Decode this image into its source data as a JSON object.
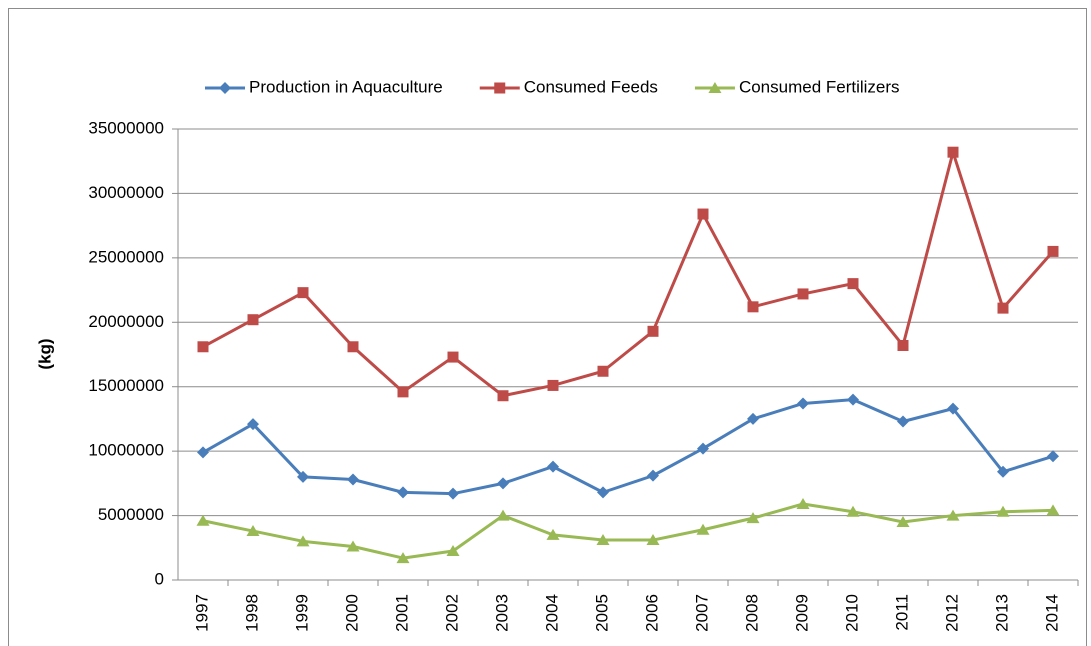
{
  "chart_data": {
    "type": "line",
    "y_label": "(kg)",
    "categories": [
      "1997",
      "1998",
      "1999",
      "2000",
      "2001",
      "2002",
      "2003",
      "2004",
      "2005",
      "2006",
      "2007",
      "2008",
      "2009",
      "2010",
      "2011",
      "2012",
      "2013",
      "2014"
    ],
    "series": [
      {
        "name": "Production in Aquaculture",
        "color": "#4a7ebb",
        "marker": "diamond",
        "values": [
          9900000,
          12100000,
          8000000,
          7800000,
          6800000,
          6700000,
          7500000,
          8800000,
          6800000,
          8100000,
          10200000,
          12500000,
          13700000,
          14000000,
          12300000,
          13300000,
          8400000,
          9600000
        ]
      },
      {
        "name": "Consumed Feeds",
        "color": "#be4b48",
        "marker": "square",
        "values": [
          18100000,
          20200000,
          22300000,
          18100000,
          14600000,
          17300000,
          14300000,
          15100000,
          16200000,
          19300000,
          28400000,
          21200000,
          22200000,
          23000000,
          18200000,
          33200000,
          21100000,
          25500000
        ]
      },
      {
        "name": "Consumed Fertilizers",
        "color": "#98b954",
        "marker": "triangle",
        "values": [
          4600000,
          3800000,
          3000000,
          2600000,
          1700000,
          2250000,
          5000000,
          3500000,
          3100000,
          3100000,
          3900000,
          4800000,
          5900000,
          5300000,
          4500000,
          5000000,
          5300000,
          5400000
        ]
      }
    ],
    "ylim": [
      0,
      35000000
    ],
    "yticks": [
      0,
      5000000,
      10000000,
      15000000,
      20000000,
      25000000,
      30000000,
      35000000
    ],
    "grid": true,
    "legend": "top"
  }
}
